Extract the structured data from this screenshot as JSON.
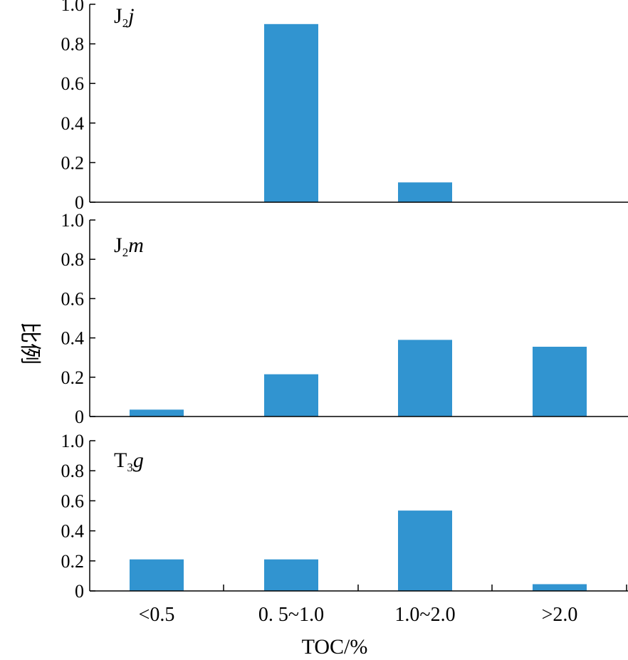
{
  "chart_data": {
    "type": "bar",
    "categories": [
      "<0.5",
      "0. 5~1.0",
      "1.0~2.0",
      ">2.0"
    ],
    "xlabel": "TOC/%",
    "ylabel": "比例",
    "ylim": [
      0,
      1.0
    ],
    "yticks": [
      "0",
      "0.2",
      "0.4",
      "0.6",
      "0.8",
      "1.0"
    ],
    "bar_color": "#3194d0",
    "panels": [
      {
        "label_main": "J",
        "label_sub": "2",
        "label_ital": "j",
        "values": [
          0,
          0.9,
          0.1,
          0
        ]
      },
      {
        "label_main": "J",
        "label_sub": "2",
        "label_ital": "m",
        "values": [
          0.035,
          0.215,
          0.39,
          0.355
        ]
      },
      {
        "label_main": "T",
        "label_sub": "3",
        "label_ital": "g",
        "values": [
          0.21,
          0.21,
          0.535,
          0.045
        ]
      }
    ]
  }
}
